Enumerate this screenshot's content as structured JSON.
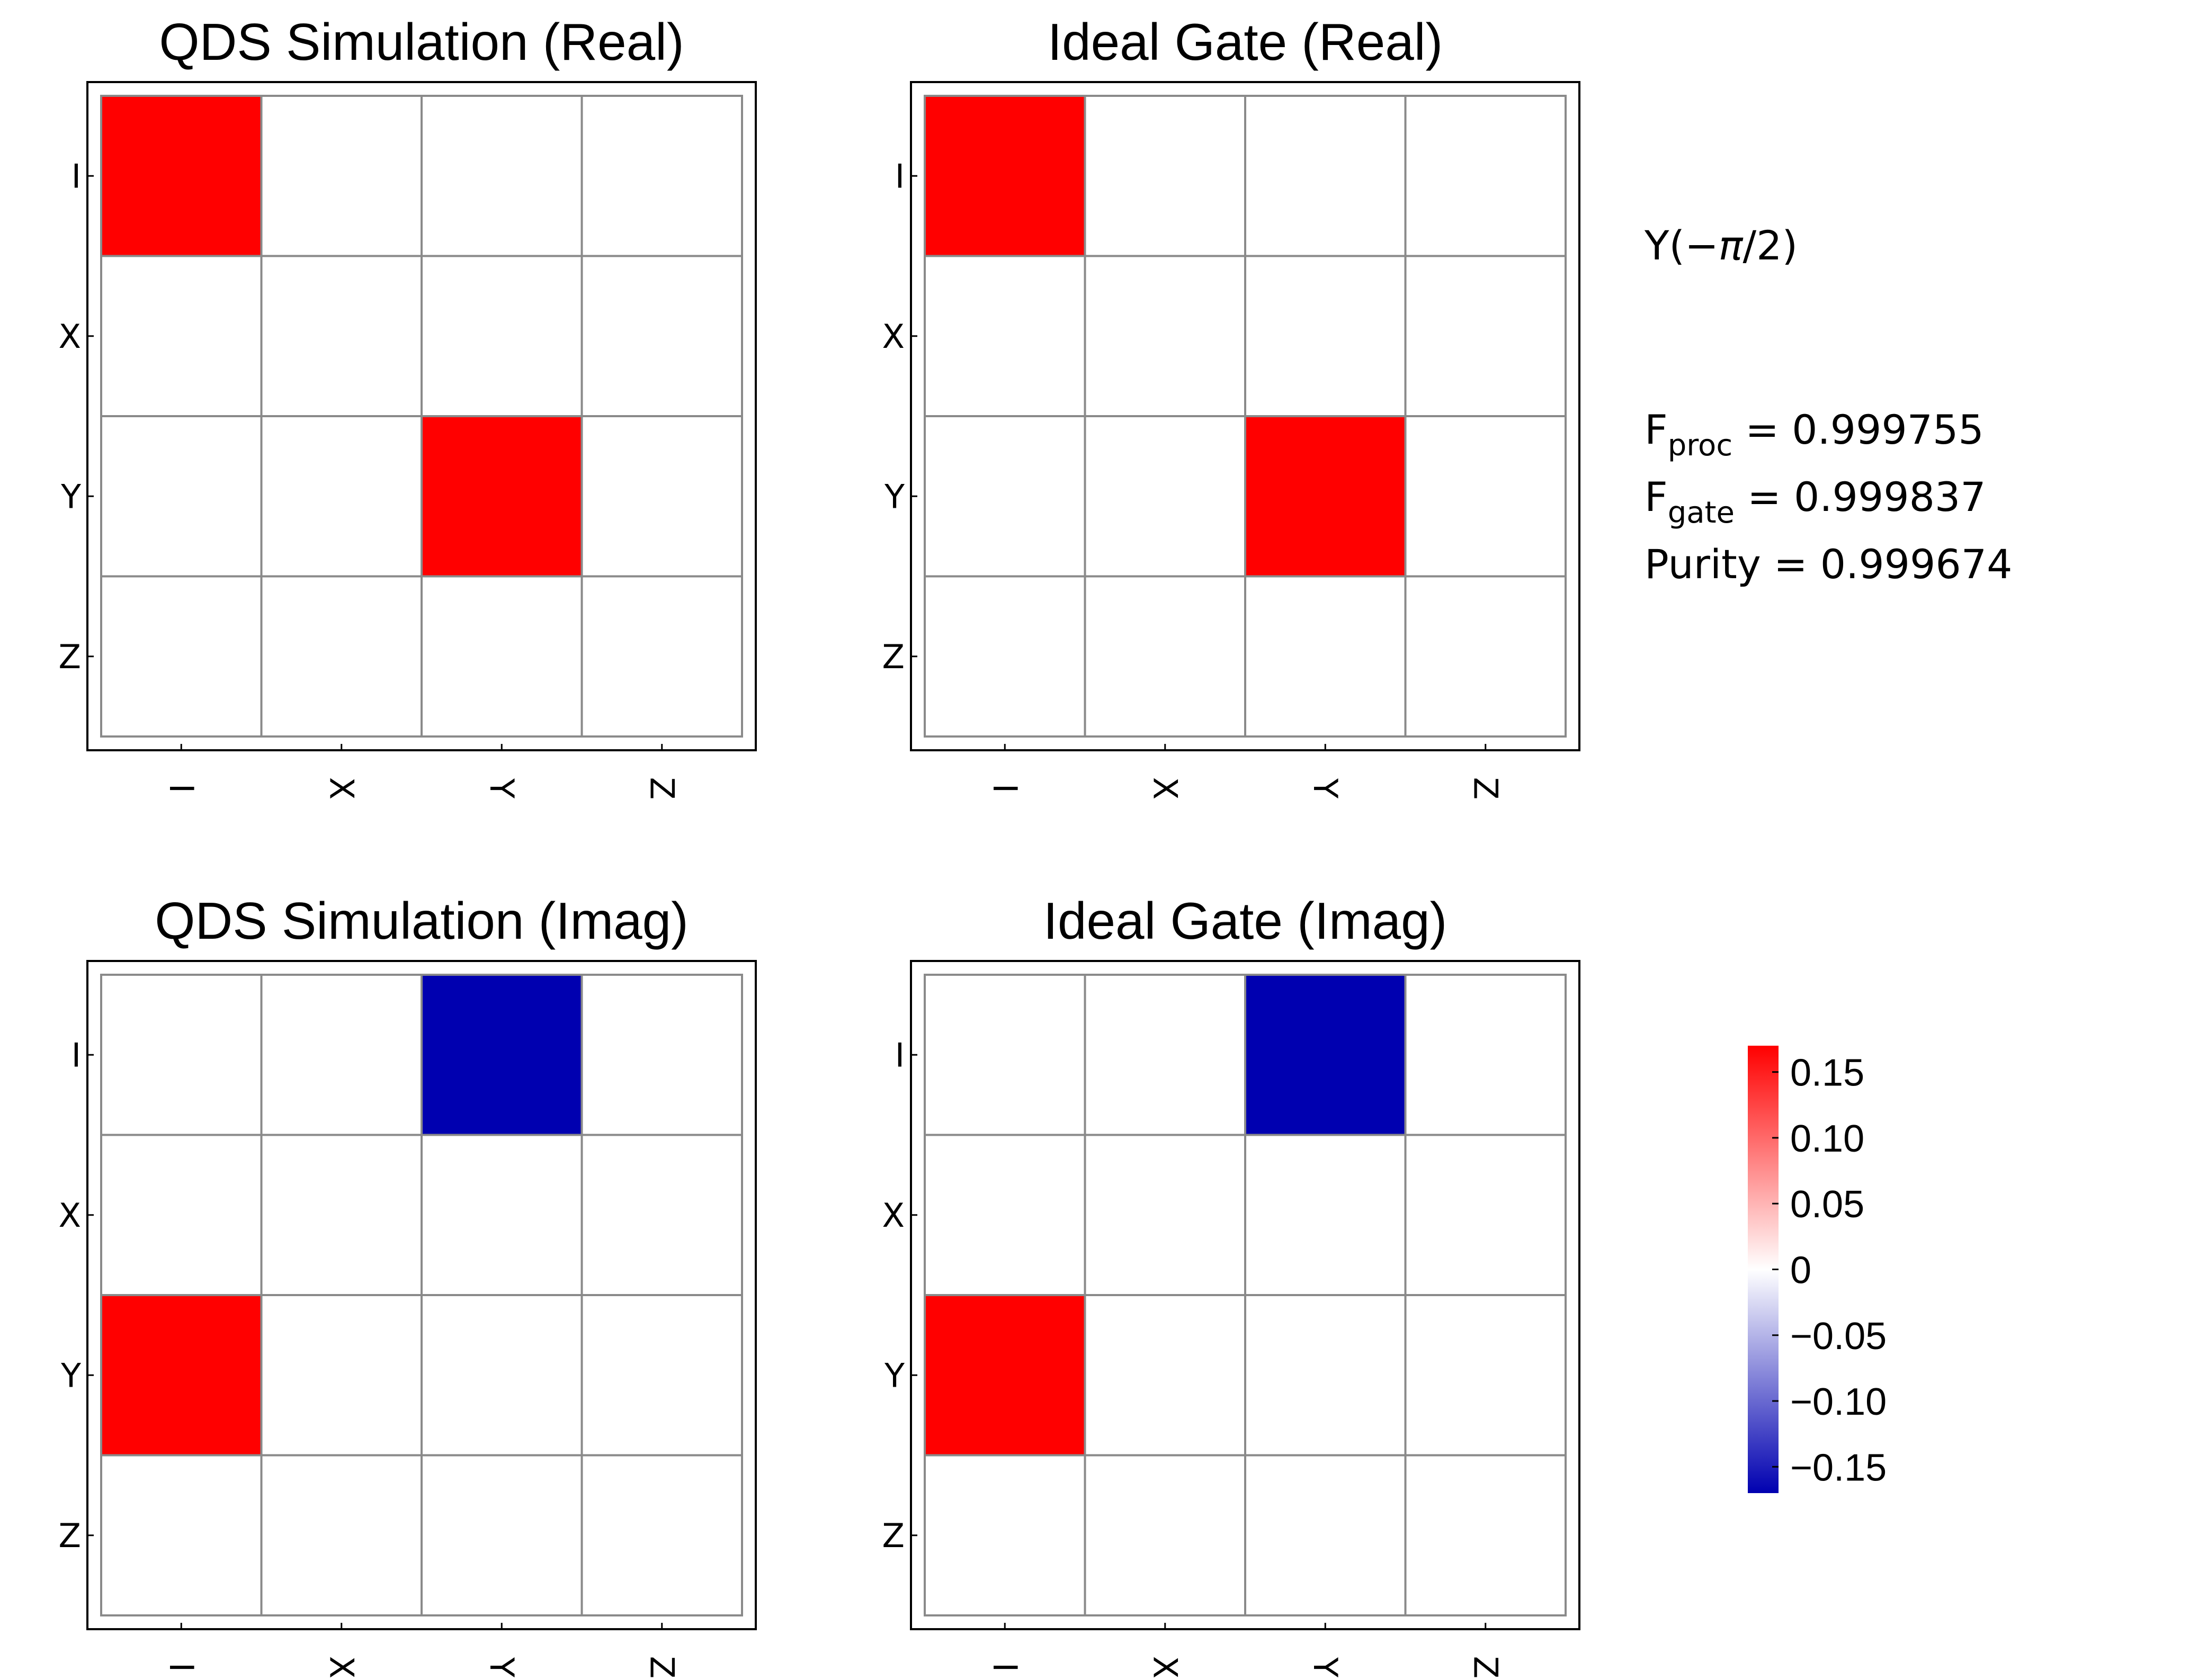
{
  "chart_data": [
    {
      "type": "heatmap",
      "title": "QDS Simulation (Real)",
      "rows": [
        "I",
        "X",
        "Y",
        "Z"
      ],
      "columns": [
        "I",
        "X",
        "Y",
        "Z"
      ],
      "values": [
        [
          0.16,
          0,
          0,
          0
        ],
        [
          0,
          0,
          0,
          0
        ],
        [
          0,
          0,
          0.16,
          0
        ],
        [
          0,
          0,
          0,
          0
        ]
      ]
    },
    {
      "type": "heatmap",
      "title": "Ideal Gate (Real)",
      "rows": [
        "I",
        "X",
        "Y",
        "Z"
      ],
      "columns": [
        "I",
        "X",
        "Y",
        "Z"
      ],
      "values": [
        [
          0.16,
          0,
          0,
          0
        ],
        [
          0,
          0,
          0,
          0
        ],
        [
          0,
          0,
          0.16,
          0
        ],
        [
          0,
          0,
          0,
          0
        ]
      ]
    },
    {
      "type": "heatmap",
      "title": "QDS Simulation (Imag)",
      "rows": [
        "I",
        "X",
        "Y",
        "Z"
      ],
      "columns": [
        "I",
        "X",
        "Y",
        "Z"
      ],
      "values": [
        [
          0,
          0,
          -0.16,
          0
        ],
        [
          0,
          0,
          0,
          0
        ],
        [
          0.16,
          0,
          0,
          0
        ],
        [
          0,
          0,
          0,
          0
        ]
      ]
    },
    {
      "type": "heatmap",
      "title": "Ideal Gate (Imag)",
      "rows": [
        "I",
        "X",
        "Y",
        "Z"
      ],
      "columns": [
        "I",
        "X",
        "Y",
        "Z"
      ],
      "values": [
        [
          0,
          0,
          -0.16,
          0
        ],
        [
          0,
          0,
          0,
          0
        ],
        [
          0.16,
          0,
          0,
          0
        ],
        [
          0,
          0,
          0,
          0
        ]
      ]
    }
  ],
  "colorbar": {
    "range": [
      -0.17,
      0.17
    ],
    "ticks": [
      0.15,
      0.1,
      0.05,
      0,
      -0.05,
      -0.1,
      -0.15
    ],
    "tick_labels": [
      "0.15",
      "0.10",
      "0.05",
      "0",
      "−0.05",
      "−0.10",
      "−0.15"
    ],
    "colors": {
      "max": "#ff0000",
      "mid": "#ffffff",
      "min": "#0000b0"
    }
  },
  "info": {
    "gate": "Y(−",
    "gate_pi": "π",
    "gate_tail": "/2)",
    "fproc_main": "F",
    "fproc_sub": "proc",
    "fproc_value": " = 0.999755",
    "fgate_main": "F",
    "fgate_sub": "gate",
    "fgate_value": " = 0.999837",
    "purity": "Purity = 0.999674"
  },
  "colors": {
    "grid": "#8a8a8a",
    "frame": "#000000"
  }
}
